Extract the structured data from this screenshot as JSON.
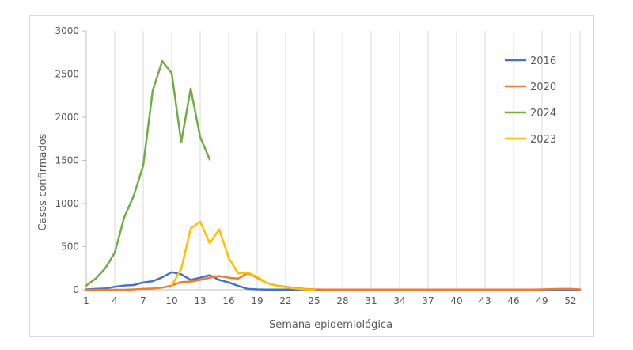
{
  "chart_data": {
    "type": "line",
    "title": "",
    "xlabel": "Semana epidemiológica",
    "ylabel": "Casos confirmados",
    "xlim": [
      1,
      53
    ],
    "ylim": [
      0,
      3000
    ],
    "x_ticks": [
      1,
      4,
      7,
      10,
      13,
      16,
      19,
      22,
      25,
      28,
      31,
      34,
      37,
      40,
      43,
      46,
      49,
      52
    ],
    "y_ticks": [
      0,
      500,
      1000,
      1500,
      2000,
      2500,
      3000
    ],
    "grid": "vertical",
    "legend_position": "top-right",
    "series": [
      {
        "name": "2016",
        "color": "#4472c4",
        "x": [
          1,
          2,
          3,
          4,
          5,
          6,
          7,
          8,
          9,
          10,
          11,
          12,
          13,
          14,
          15,
          16,
          17,
          18,
          19,
          20,
          21,
          22,
          23,
          24,
          25,
          26,
          27,
          28,
          29,
          30,
          31,
          32,
          33,
          34,
          35,
          36,
          37,
          38,
          39,
          40,
          41,
          42,
          43,
          44,
          45,
          46,
          47,
          48,
          49,
          50,
          51,
          52,
          53
        ],
        "values": [
          5,
          10,
          15,
          35,
          50,
          55,
          85,
          100,
          145,
          205,
          180,
          115,
          140,
          170,
          115,
          85,
          45,
          10,
          5,
          3,
          2,
          2,
          1,
          1,
          1,
          1,
          1,
          1,
          1,
          1,
          1,
          1,
          1,
          1,
          1,
          1,
          1,
          1,
          1,
          1,
          1,
          1,
          1,
          1,
          1,
          1,
          1,
          1,
          1,
          1,
          1,
          1,
          1
        ]
      },
      {
        "name": "2020",
        "color": "#ed7d31",
        "x": [
          1,
          2,
          3,
          4,
          5,
          6,
          7,
          8,
          9,
          10,
          11,
          12,
          13,
          14,
          15,
          16,
          17,
          18,
          19,
          20,
          21,
          22,
          23,
          24,
          25,
          26,
          27,
          28,
          29,
          30,
          31,
          32,
          33,
          34,
          35,
          36,
          37,
          38,
          39,
          40,
          41,
          42,
          43,
          44,
          45,
          46,
          47,
          48,
          49,
          50,
          51,
          52,
          53
        ],
        "values": [
          0,
          0,
          0,
          0,
          0,
          5,
          10,
          15,
          25,
          50,
          90,
          95,
          115,
          140,
          160,
          140,
          130,
          195,
          140,
          80,
          50,
          35,
          20,
          10,
          5,
          3,
          2,
          2,
          2,
          2,
          2,
          2,
          2,
          2,
          2,
          2,
          2,
          2,
          2,
          2,
          2,
          2,
          2,
          2,
          2,
          2,
          2,
          3,
          5,
          8,
          10,
          10,
          5
        ]
      },
      {
        "name": "2024",
        "color": "#70ad47",
        "x": [
          1,
          2,
          3,
          4,
          5,
          6,
          7,
          8,
          9,
          10,
          11,
          12,
          13,
          14
        ],
        "values": [
          50,
          130,
          250,
          430,
          840,
          1090,
          1440,
          2310,
          2650,
          2510,
          1710,
          2330,
          1770,
          1510
        ]
      },
      {
        "name": "2023",
        "color": "#ffc000",
        "x": [
          10,
          11,
          12,
          13,
          14,
          15,
          16,
          17,
          18,
          19,
          20,
          21,
          22,
          23,
          24,
          25
        ],
        "values": [
          50,
          240,
          710,
          790,
          540,
          700,
          370,
          190,
          200,
          150,
          80,
          50,
          30,
          15,
          5,
          0
        ]
      }
    ]
  }
}
